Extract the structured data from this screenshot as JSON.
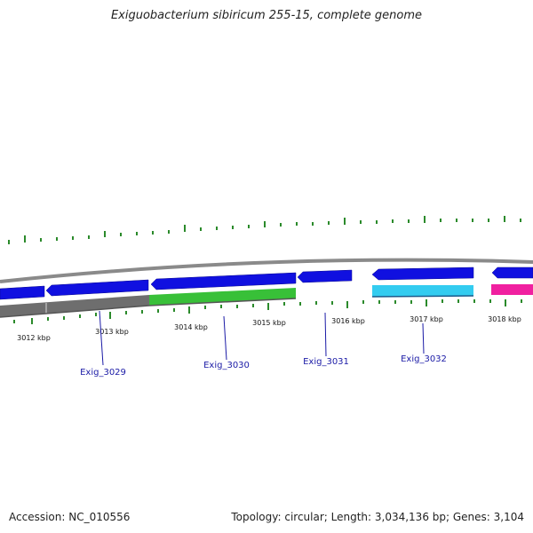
{
  "title": "Exiguobacterium sibiricum 255-15, complete genome",
  "accession": "Accession: NC_010556",
  "summary": "Topology: circular; Length: 3,034,136 bp; Genes: 3,104",
  "colors": {
    "backbone": "#8a8a8a",
    "forward_gene": "#1010e0",
    "reverse_gene_green": "#38c038",
    "reverse_gene_cyan": "#33ccf0",
    "reverse_gene_magenta": "#f020a0",
    "gc_skew": "#2b8a2b",
    "label": "#1a1aa6"
  },
  "kbp_ticks": [
    "3012 kbp",
    "3013 kbp",
    "3014 kbp",
    "3015 kbp",
    "3016 kbp",
    "3017 kbp",
    "3018 kbp"
  ],
  "genes": [
    "Exig_3029",
    "Exig_3030",
    "Exig_3031",
    "Exig_3032"
  ]
}
